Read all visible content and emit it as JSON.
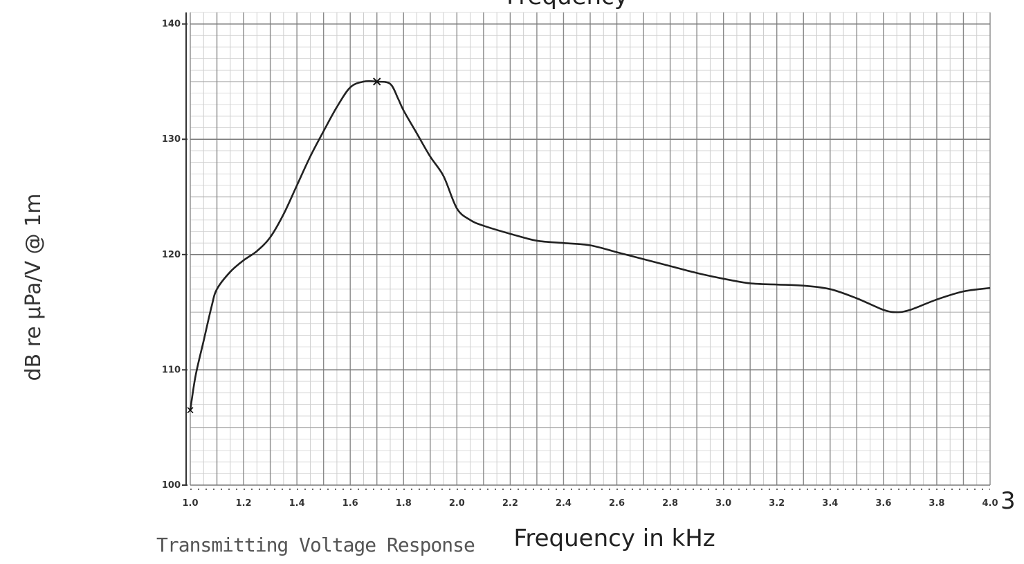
{
  "chart_data": {
    "type": "line",
    "title": "Frequency",
    "xlabel": "Frequency in kHz",
    "ylabel": "dB re µPa/V @ 1m",
    "footer": "Transmitting Voltage Response",
    "stray_label": "3",
    "xlim": [
      1.0,
      4.0
    ],
    "ylim": [
      100,
      141
    ],
    "x_ticks": [
      "1.0",
      "1.2",
      "1.4",
      "1.6",
      "1.8",
      "2.0",
      "2.2",
      "2.4",
      "2.6",
      "2.8",
      "3.0",
      "3.2",
      "3.4",
      "3.6",
      "3.8",
      "4.0"
    ],
    "y_ticks": [
      "100",
      "110",
      "120",
      "130",
      "140"
    ],
    "grid": true,
    "peak_marker_x": 1.7,
    "series": [
      {
        "color": "#222222",
        "x": [
          1.0,
          1.02,
          1.05,
          1.08,
          1.1,
          1.15,
          1.2,
          1.25,
          1.3,
          1.35,
          1.4,
          1.45,
          1.5,
          1.55,
          1.6,
          1.65,
          1.7,
          1.75,
          1.78,
          1.8,
          1.85,
          1.9,
          1.95,
          2.0,
          2.05,
          2.1,
          2.2,
          2.3,
          2.4,
          2.5,
          2.6,
          2.7,
          2.8,
          2.9,
          3.0,
          3.1,
          3.2,
          3.3,
          3.4,
          3.5,
          3.6,
          3.65,
          3.7,
          3.8,
          3.9,
          4.0
        ],
        "y": [
          106.5,
          109.5,
          112.5,
          115.5,
          117,
          118.5,
          119.5,
          120.3,
          121.5,
          123.5,
          126,
          128.5,
          130.7,
          132.8,
          134.5,
          135,
          135,
          134.8,
          133.5,
          132.5,
          130.5,
          128.5,
          126.8,
          124,
          123,
          122.5,
          121.8,
          121.2,
          121,
          120.8,
          120.2,
          119.6,
          119,
          118.4,
          117.9,
          117.5,
          117.4,
          117.3,
          117,
          116.2,
          115.2,
          115,
          115.2,
          116.1,
          116.8,
          117.1
        ]
      }
    ]
  }
}
